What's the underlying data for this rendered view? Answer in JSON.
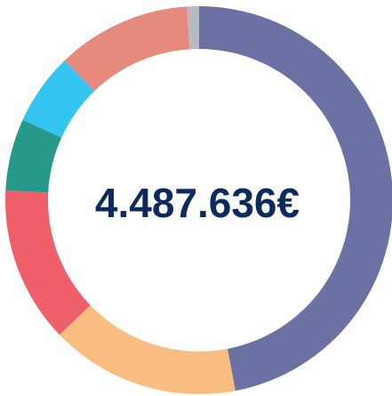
{
  "chart_data": {
    "type": "donut",
    "center_label": "4.487.636€",
    "values": [
      47,
      15.8,
      13,
      6,
      6,
      11.2,
      1
    ],
    "colors": [
      "#6b72a3",
      "#f9bd82",
      "#ef5f6a",
      "#27998a",
      "#33c5f2",
      "#e68a7e",
      "#b8b9c3"
    ]
  }
}
